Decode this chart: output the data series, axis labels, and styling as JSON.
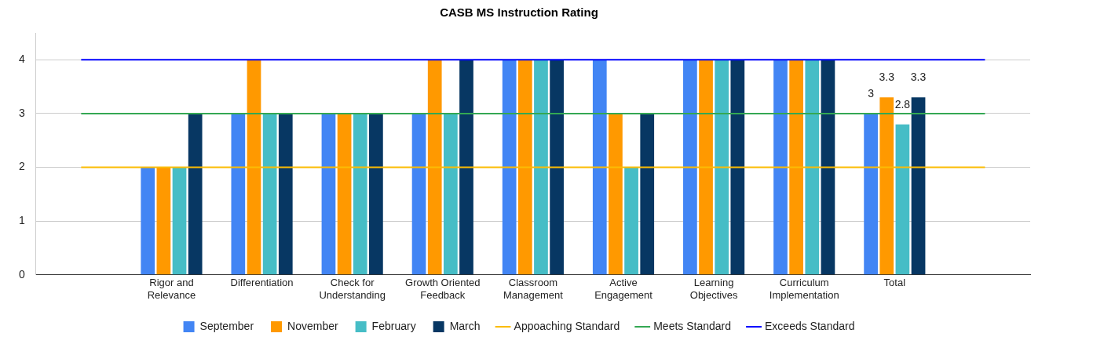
{
  "chart_data": {
    "type": "bar",
    "title": "CASB MS Instruction Rating",
    "categories": [
      null,
      "Rigor and Relevance",
      "Differentiation",
      "Check for Understanding",
      "Growth Oriented Feedback",
      "Classroom Management",
      "Active Engagement",
      "Learning Objectives",
      "Curriculum Implementation",
      "Total",
      null
    ],
    "series": [
      {
        "name": "September",
        "color": "#4285f4",
        "values": [
          null,
          2,
          3,
          3,
          3,
          4,
          4,
          4,
          4,
          3,
          null
        ],
        "value_labels": [
          null,
          null,
          null,
          null,
          null,
          null,
          null,
          null,
          null,
          "3",
          null
        ]
      },
      {
        "name": "November",
        "color": "#ff9900",
        "values": [
          null,
          2,
          4,
          3,
          4,
          4,
          3,
          4,
          4,
          3.3,
          null
        ],
        "value_labels": [
          null,
          null,
          null,
          null,
          null,
          null,
          null,
          null,
          null,
          "3.3",
          null
        ]
      },
      {
        "name": "February",
        "color": "#46bdc6",
        "values": [
          null,
          2,
          3,
          3,
          3,
          4,
          2,
          4,
          4,
          2.8,
          null
        ],
        "value_labels": [
          null,
          null,
          null,
          null,
          null,
          null,
          null,
          null,
          null,
          "2.8",
          null
        ]
      },
      {
        "name": "March",
        "color": "#073763",
        "values": [
          null,
          3,
          3,
          3,
          4,
          4,
          3,
          4,
          4,
          3.3,
          null
        ],
        "value_labels": [
          null,
          null,
          null,
          null,
          null,
          null,
          null,
          null,
          null,
          "3.3",
          null
        ]
      },
      {
        "name": "Appoaching Standard",
        "type": "line",
        "color": "#fbbc04",
        "values": [
          2,
          2,
          2,
          2,
          2,
          2,
          2,
          2,
          2,
          2,
          2
        ]
      },
      {
        "name": "Meets Standard",
        "type": "line",
        "color": "#34a853",
        "values": [
          3,
          3,
          3,
          3,
          3,
          3,
          3,
          3,
          3,
          3,
          3
        ]
      },
      {
        "name": "Exceeds Standard",
        "type": "line",
        "color": "#0000ff",
        "values": [
          4,
          4,
          4,
          4,
          4,
          4,
          4,
          4,
          4,
          4,
          4
        ]
      }
    ],
    "ylim": [
      0,
      4.5
    ],
    "yticks": [
      0,
      1,
      2,
      3,
      4
    ],
    "grid": "y",
    "legend": "bottom",
    "marker": "none",
    "line_style": "solid"
  }
}
